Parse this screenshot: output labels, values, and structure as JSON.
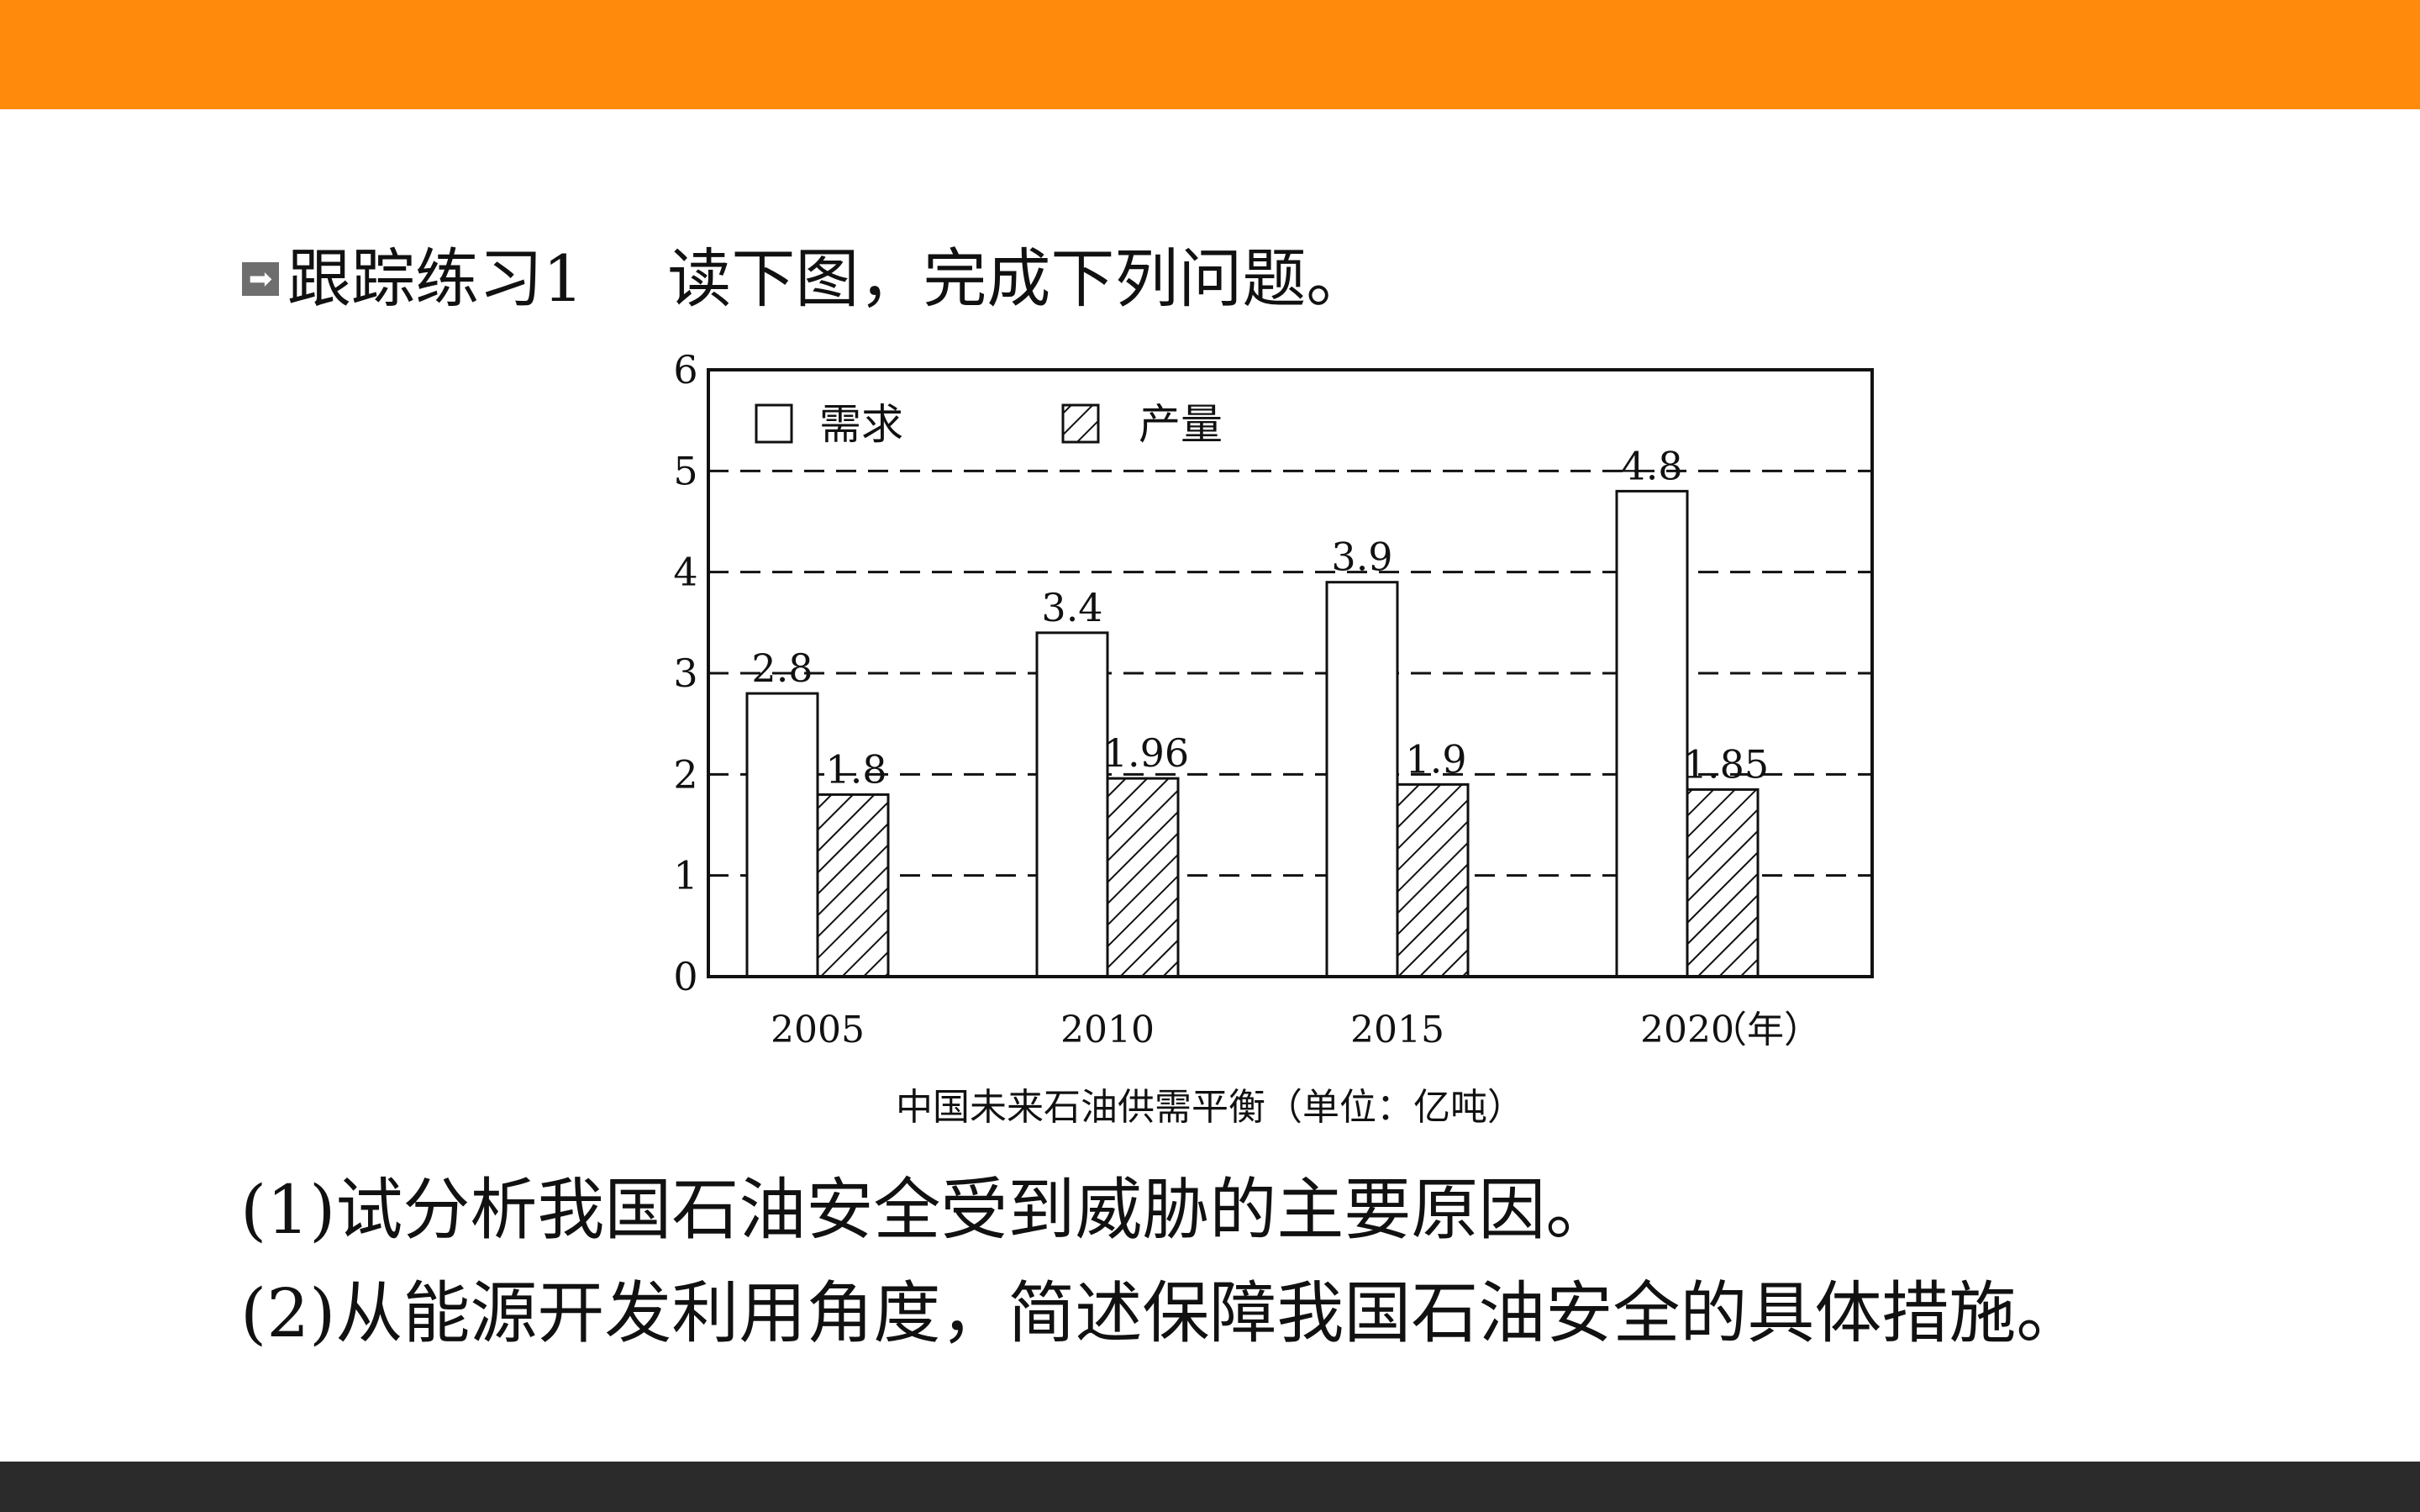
{
  "colors": {
    "top_bar": "#ff8a0c",
    "bottom_bar": "#2b2b2b",
    "axis_and_text": "#111111",
    "demand_fill": "#ffffff",
    "hatch": "#111111"
  },
  "heading": {
    "icon": "arrow-right-icon",
    "label": "跟踪练习1",
    "task": "读下图，完成下列问题。"
  },
  "chart_data": {
    "type": "bar",
    "title": "",
    "caption": "中国未来石油供需平衡（单位：亿吨）",
    "categories": [
      "2005",
      "2010",
      "2015",
      "2020"
    ],
    "xunit": "（年）",
    "ylim": [
      0,
      6
    ],
    "yticks": [
      "0",
      "1",
      "2",
      "3",
      "4",
      "5",
      "6"
    ],
    "grid": "horizontal dashed",
    "legend_position": "top-left",
    "series": [
      {
        "name": "需求",
        "pattern": "plain",
        "values": [
          2.8,
          3.4,
          3.9,
          4.8
        ],
        "labels": [
          "2.8",
          "3.4",
          "3.9",
          "4.8"
        ]
      },
      {
        "name": "产量",
        "pattern": "hatched",
        "values": [
          1.8,
          1.96,
          1.9,
          1.85
        ],
        "labels": [
          "1.8",
          "1.96",
          "1.9",
          "1.85"
        ]
      }
    ]
  },
  "questions": [
    "(1)试分析我国石油安全受到威胁的主要原因。",
    "(2)从能源开发利用角度，简述保障我国石油安全的具体措施。"
  ]
}
